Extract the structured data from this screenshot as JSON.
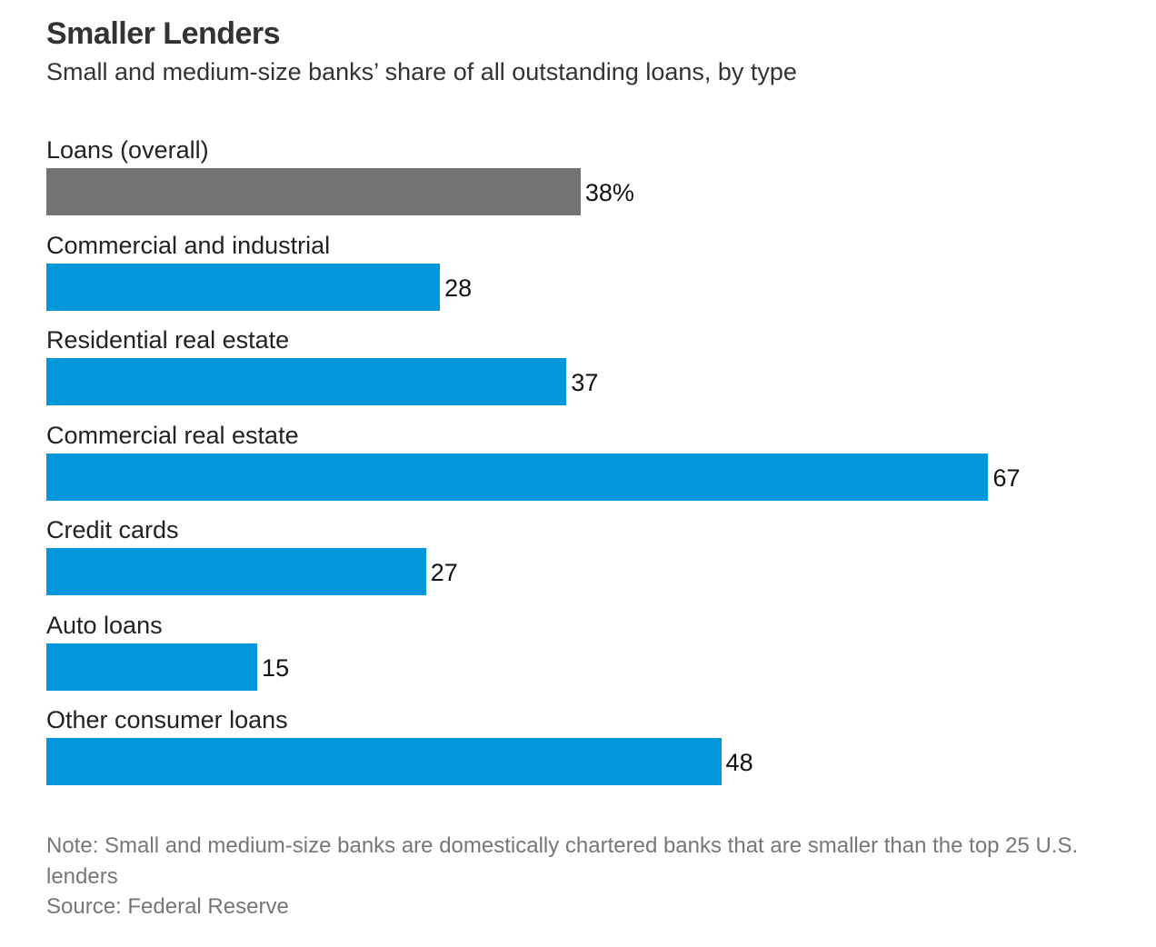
{
  "chart_data": {
    "type": "bar",
    "orientation": "horizontal",
    "title": "Smaller Lenders",
    "subtitle": "Small and medium-size banks’ share of all outstanding loans, by type",
    "categories": [
      "Loans (overall)",
      "Commercial and industrial",
      "Residential real estate",
      "Commercial real estate",
      "Credit cards",
      "Auto loans",
      "Other consumer loans"
    ],
    "values": [
      38,
      28,
      37,
      67,
      27,
      15,
      48
    ],
    "value_labels": [
      "38%",
      "28",
      "37",
      "67",
      "27",
      "15",
      "48"
    ],
    "bar_colors": [
      "#737373",
      "#0098DB",
      "#0098DB",
      "#0098DB",
      "#0098DB",
      "#0098DB",
      "#0098DB"
    ],
    "grid": false,
    "legend": "none",
    "note": "Note: Small and medium-size banks are domestically chartered banks that are smaller than the top 25 U.S. lenders",
    "source": "Source: Federal Reserve"
  }
}
